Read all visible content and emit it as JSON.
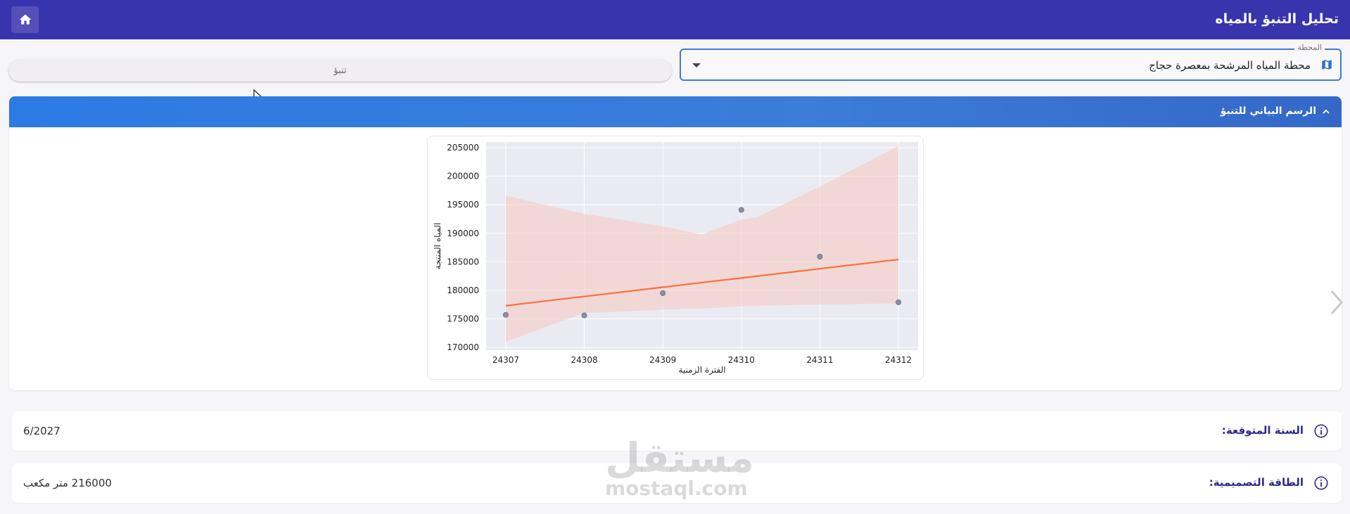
{
  "header": {
    "title": "تحليل التنبؤ بالمياه",
    "home_icon": "home-icon"
  },
  "station": {
    "legend": "المحطة",
    "value": "محطة المياه المرشحة بمعصرة حجاج",
    "icon": "map-icon"
  },
  "predict_button": {
    "label": "تنبؤ"
  },
  "chart_panel": {
    "title": "الرسم البياني للتنبؤ"
  },
  "chart_data": {
    "type": "scatter",
    "title": "",
    "xlabel": "الفترة الزمنية",
    "ylabel": "المياه المنتجة",
    "x_ticks": [
      "24307",
      "24308",
      "24309",
      "24310",
      "24311",
      "24312"
    ],
    "y_ticks": [
      "170000",
      "175000",
      "180000",
      "185000",
      "190000",
      "195000",
      "200000",
      "205000"
    ],
    "xlim": [
      24306.75,
      24312.25
    ],
    "ylim": [
      169500,
      206000
    ],
    "grid": true,
    "series": [
      {
        "kind": "points",
        "color": "#8a8fa3",
        "x": [
          24307,
          24308,
          24309,
          24310,
          24311,
          24312
        ],
        "y": [
          175700,
          175600,
          179500,
          194100,
          185900,
          177900
        ]
      },
      {
        "kind": "trend",
        "color": "#ff6f3c",
        "x": [
          24307,
          24312
        ],
        "y": [
          177300,
          185400
        ]
      },
      {
        "kind": "band",
        "color": "#f6c9c0",
        "x": [
          24307,
          24308,
          24309,
          24309.5,
          24310,
          24310.2,
          24311,
          24312
        ],
        "upper": [
          196600,
          193400,
          191200,
          189800,
          192400,
          192800,
          198200,
          205300
        ],
        "lower": [
          171000,
          176000,
          176600,
          176800,
          177200,
          177300,
          177500,
          177700
        ]
      }
    ]
  },
  "info_rows": [
    {
      "label": "السنة المتوقعة:",
      "value": "6/2027"
    },
    {
      "label": "الطاقة التصميمية:",
      "value": "216000 متر مكعب"
    }
  ],
  "watermark": {
    "arabic": "مستقل",
    "latin": "mostaql.com"
  }
}
